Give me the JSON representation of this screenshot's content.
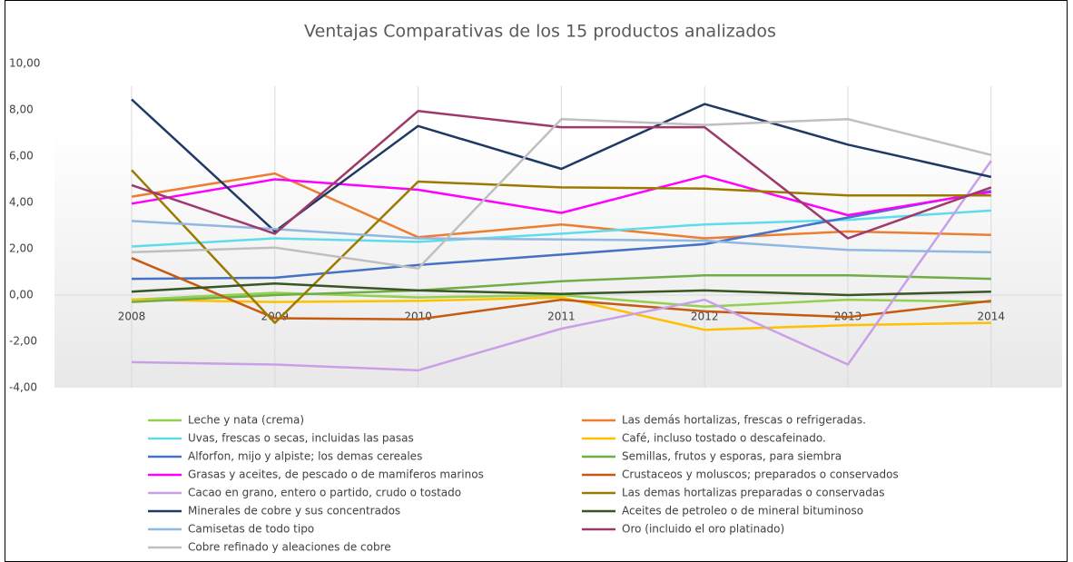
{
  "chart_data": {
    "type": "line",
    "title": "Ventajas Comparativas de los 15 productos analizados",
    "categories": [
      "2008",
      "2009",
      "2010",
      "2011",
      "2012",
      "2013",
      "2014"
    ],
    "ylim": [
      -4,
      10
    ],
    "yticks": [
      {
        "value": -4,
        "label": "-4,00"
      },
      {
        "value": -2,
        "label": "-2,00"
      },
      {
        "value": 0,
        "label": "0,00"
      },
      {
        "value": 2,
        "label": "2,00"
      },
      {
        "value": 4,
        "label": "4,00"
      },
      {
        "value": 6,
        "label": "6,00"
      },
      {
        "value": 8,
        "label": "8,00"
      },
      {
        "value": 10,
        "label": "10,00"
      }
    ],
    "grid": "x",
    "legend": "bottom",
    "series": [
      {
        "name": "Leche y nata (crema)",
        "color": "#92d050",
        "values": [
          -0.2,
          0.1,
          -0.1,
          0.0,
          -0.5,
          -0.2,
          -0.3
        ]
      },
      {
        "name": "Las demás hortalizas, frescas o refrigeradas.",
        "color": "#ed7d31",
        "values": [
          4.25,
          5.25,
          2.5,
          3.05,
          2.45,
          2.75,
          2.6
        ]
      },
      {
        "name": "Uvas, frescas o secas, incluidas las pasas",
        "color": "#5fdcec",
        "values": [
          2.1,
          2.45,
          2.3,
          2.65,
          3.05,
          3.25,
          3.65
        ]
      },
      {
        "name": "Café, incluso tostado o descafeinado.",
        "color": "#ffc000",
        "values": [
          -0.2,
          -0.3,
          -0.25,
          -0.1,
          -1.5,
          -1.3,
          -1.2
        ]
      },
      {
        "name": "Alforfon, mijo y alpiste; los demas cereales",
        "color": "#4472c4",
        "values": [
          0.7,
          0.75,
          1.3,
          1.75,
          2.2,
          3.35,
          4.5
        ]
      },
      {
        "name": "Semillas, frutos y esporas, para siembra",
        "color": "#70ad47",
        "values": [
          -0.3,
          0.0,
          0.2,
          0.6,
          0.85,
          0.85,
          0.7
        ]
      },
      {
        "name": "Grasas y aceites, de pescado o de mamiferos marinos",
        "color": "#ff00ff",
        "values": [
          3.95,
          5.0,
          4.55,
          3.55,
          5.15,
          3.45,
          4.45
        ]
      },
      {
        "name": "Crustaceos y moluscos; preparados o conservados",
        "color": "#c55a11",
        "values": [
          1.6,
          -1.0,
          -1.05,
          -0.2,
          -0.7,
          -0.95,
          -0.25
        ]
      },
      {
        "name": "Cacao en grano, entero o partido, crudo o tostado",
        "color": "#c9a0e8",
        "values": [
          -2.9,
          -3.0,
          -3.25,
          -1.45,
          -0.2,
          -3.0,
          5.8
        ]
      },
      {
        "name": "Las demas hortalizas preparadas o conservadas",
        "color": "#9c7a00",
        "values": [
          5.4,
          -1.2,
          4.9,
          4.65,
          4.6,
          4.3,
          4.3
        ]
      },
      {
        "name": "Minerales de cobre y sus concentrados",
        "color": "#203864",
        "values": [
          8.45,
          2.75,
          7.3,
          5.45,
          8.25,
          6.5,
          5.1
        ]
      },
      {
        "name": "Aceites de petroleo o de mineral bituminoso",
        "color": "#375623",
        "values": [
          0.15,
          0.5,
          0.2,
          0.05,
          0.2,
          0.0,
          0.15
        ]
      },
      {
        "name": "Camisetas de todo tipo",
        "color": "#8fb8e2",
        "values": [
          3.2,
          2.85,
          2.45,
          2.4,
          2.35,
          1.95,
          1.85
        ]
      },
      {
        "name": "Oro (incluido el oro platinado)",
        "color": "#9e3a6b",
        "values": [
          4.75,
          2.65,
          7.95,
          7.25,
          7.25,
          2.45,
          4.65
        ]
      },
      {
        "name": "Cobre refinado y aleaciones de cobre",
        "color": "#bfbfbf",
        "values": [
          1.85,
          2.05,
          1.15,
          7.6,
          7.35,
          7.6,
          6.05
        ]
      }
    ]
  }
}
